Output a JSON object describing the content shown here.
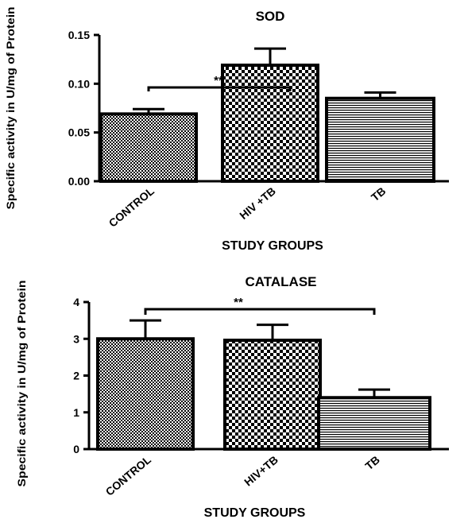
{
  "chart_data": [
    {
      "type": "bar",
      "title": "SOD",
      "xlabel": "STUDY GROUPS",
      "ylabel": "Specific activity in U/mg of Protein",
      "categories": [
        "CONTROL",
        "HIV +TB",
        "TB"
      ],
      "values": [
        0.069,
        0.119,
        0.085
      ],
      "errors": [
        0.005,
        0.017,
        0.006
      ],
      "ylim": [
        0,
        0.15
      ],
      "yticks": [
        "0.00",
        "0.05",
        "0.10",
        "0.15"
      ],
      "significance": {
        "from": 0,
        "to": 1,
        "label": "**"
      },
      "bar_patterns": [
        "fine-checker",
        "coarse-checker",
        "horizontal-lines"
      ]
    },
    {
      "type": "bar",
      "title": "CATALASE",
      "xlabel": "STUDY GROUPS",
      "ylabel": "Specific activity in U/mg of Protein",
      "categories": [
        "CONTROL",
        "HIV+TB",
        "TB"
      ],
      "values": [
        3.0,
        2.96,
        1.4
      ],
      "errors": [
        0.5,
        0.42,
        0.22
      ],
      "ylim": [
        0,
        4
      ],
      "yticks": [
        "0",
        "1",
        "2",
        "3",
        "4"
      ],
      "significance": {
        "from": 0,
        "to": 2,
        "label": "**"
      },
      "bar_patterns": [
        "fine-checker",
        "coarse-checker",
        "horizontal-lines"
      ]
    }
  ]
}
